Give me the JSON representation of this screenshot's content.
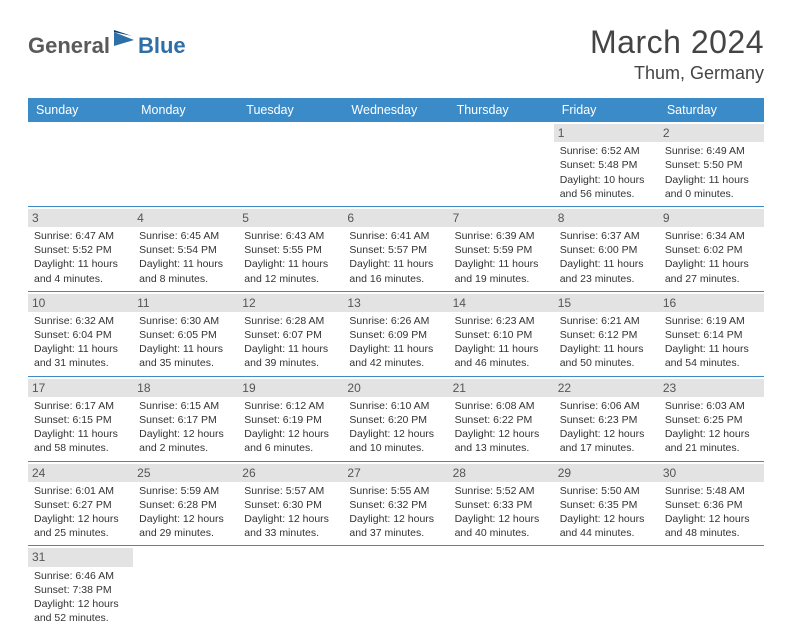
{
  "brand": {
    "part1": "General",
    "part2": "Blue"
  },
  "title": "March 2024",
  "location": "Thum, Germany",
  "colors": {
    "header_bg": "#3b8bc9",
    "header_fg": "#ffffff",
    "daynum_bg": "#e3e3e3",
    "rule": "#3b8bc9",
    "brand_gray": "#5a5a5a",
    "brand_blue": "#2f6fa8"
  },
  "day_headers": [
    "Sunday",
    "Monday",
    "Tuesday",
    "Wednesday",
    "Thursday",
    "Friday",
    "Saturday"
  ],
  "weeks": [
    [
      null,
      null,
      null,
      null,
      null,
      {
        "n": "1",
        "sr": "Sunrise: 6:52 AM",
        "ss": "Sunset: 5:48 PM",
        "d1": "Daylight: 10 hours",
        "d2": "and 56 minutes."
      },
      {
        "n": "2",
        "sr": "Sunrise: 6:49 AM",
        "ss": "Sunset: 5:50 PM",
        "d1": "Daylight: 11 hours",
        "d2": "and 0 minutes."
      }
    ],
    [
      {
        "n": "3",
        "sr": "Sunrise: 6:47 AM",
        "ss": "Sunset: 5:52 PM",
        "d1": "Daylight: 11 hours",
        "d2": "and 4 minutes."
      },
      {
        "n": "4",
        "sr": "Sunrise: 6:45 AM",
        "ss": "Sunset: 5:54 PM",
        "d1": "Daylight: 11 hours",
        "d2": "and 8 minutes."
      },
      {
        "n": "5",
        "sr": "Sunrise: 6:43 AM",
        "ss": "Sunset: 5:55 PM",
        "d1": "Daylight: 11 hours",
        "d2": "and 12 minutes."
      },
      {
        "n": "6",
        "sr": "Sunrise: 6:41 AM",
        "ss": "Sunset: 5:57 PM",
        "d1": "Daylight: 11 hours",
        "d2": "and 16 minutes."
      },
      {
        "n": "7",
        "sr": "Sunrise: 6:39 AM",
        "ss": "Sunset: 5:59 PM",
        "d1": "Daylight: 11 hours",
        "d2": "and 19 minutes."
      },
      {
        "n": "8",
        "sr": "Sunrise: 6:37 AM",
        "ss": "Sunset: 6:00 PM",
        "d1": "Daylight: 11 hours",
        "d2": "and 23 minutes."
      },
      {
        "n": "9",
        "sr": "Sunrise: 6:34 AM",
        "ss": "Sunset: 6:02 PM",
        "d1": "Daylight: 11 hours",
        "d2": "and 27 minutes."
      }
    ],
    [
      {
        "n": "10",
        "sr": "Sunrise: 6:32 AM",
        "ss": "Sunset: 6:04 PM",
        "d1": "Daylight: 11 hours",
        "d2": "and 31 minutes."
      },
      {
        "n": "11",
        "sr": "Sunrise: 6:30 AM",
        "ss": "Sunset: 6:05 PM",
        "d1": "Daylight: 11 hours",
        "d2": "and 35 minutes."
      },
      {
        "n": "12",
        "sr": "Sunrise: 6:28 AM",
        "ss": "Sunset: 6:07 PM",
        "d1": "Daylight: 11 hours",
        "d2": "and 39 minutes."
      },
      {
        "n": "13",
        "sr": "Sunrise: 6:26 AM",
        "ss": "Sunset: 6:09 PM",
        "d1": "Daylight: 11 hours",
        "d2": "and 42 minutes."
      },
      {
        "n": "14",
        "sr": "Sunrise: 6:23 AM",
        "ss": "Sunset: 6:10 PM",
        "d1": "Daylight: 11 hours",
        "d2": "and 46 minutes."
      },
      {
        "n": "15",
        "sr": "Sunrise: 6:21 AM",
        "ss": "Sunset: 6:12 PM",
        "d1": "Daylight: 11 hours",
        "d2": "and 50 minutes."
      },
      {
        "n": "16",
        "sr": "Sunrise: 6:19 AM",
        "ss": "Sunset: 6:14 PM",
        "d1": "Daylight: 11 hours",
        "d2": "and 54 minutes."
      }
    ],
    [
      {
        "n": "17",
        "sr": "Sunrise: 6:17 AM",
        "ss": "Sunset: 6:15 PM",
        "d1": "Daylight: 11 hours",
        "d2": "and 58 minutes."
      },
      {
        "n": "18",
        "sr": "Sunrise: 6:15 AM",
        "ss": "Sunset: 6:17 PM",
        "d1": "Daylight: 12 hours",
        "d2": "and 2 minutes."
      },
      {
        "n": "19",
        "sr": "Sunrise: 6:12 AM",
        "ss": "Sunset: 6:19 PM",
        "d1": "Daylight: 12 hours",
        "d2": "and 6 minutes."
      },
      {
        "n": "20",
        "sr": "Sunrise: 6:10 AM",
        "ss": "Sunset: 6:20 PM",
        "d1": "Daylight: 12 hours",
        "d2": "and 10 minutes."
      },
      {
        "n": "21",
        "sr": "Sunrise: 6:08 AM",
        "ss": "Sunset: 6:22 PM",
        "d1": "Daylight: 12 hours",
        "d2": "and 13 minutes."
      },
      {
        "n": "22",
        "sr": "Sunrise: 6:06 AM",
        "ss": "Sunset: 6:23 PM",
        "d1": "Daylight: 12 hours",
        "d2": "and 17 minutes."
      },
      {
        "n": "23",
        "sr": "Sunrise: 6:03 AM",
        "ss": "Sunset: 6:25 PM",
        "d1": "Daylight: 12 hours",
        "d2": "and 21 minutes."
      }
    ],
    [
      {
        "n": "24",
        "sr": "Sunrise: 6:01 AM",
        "ss": "Sunset: 6:27 PM",
        "d1": "Daylight: 12 hours",
        "d2": "and 25 minutes."
      },
      {
        "n": "25",
        "sr": "Sunrise: 5:59 AM",
        "ss": "Sunset: 6:28 PM",
        "d1": "Daylight: 12 hours",
        "d2": "and 29 minutes."
      },
      {
        "n": "26",
        "sr": "Sunrise: 5:57 AM",
        "ss": "Sunset: 6:30 PM",
        "d1": "Daylight: 12 hours",
        "d2": "and 33 minutes."
      },
      {
        "n": "27",
        "sr": "Sunrise: 5:55 AM",
        "ss": "Sunset: 6:32 PM",
        "d1": "Daylight: 12 hours",
        "d2": "and 37 minutes."
      },
      {
        "n": "28",
        "sr": "Sunrise: 5:52 AM",
        "ss": "Sunset: 6:33 PM",
        "d1": "Daylight: 12 hours",
        "d2": "and 40 minutes."
      },
      {
        "n": "29",
        "sr": "Sunrise: 5:50 AM",
        "ss": "Sunset: 6:35 PM",
        "d1": "Daylight: 12 hours",
        "d2": "and 44 minutes."
      },
      {
        "n": "30",
        "sr": "Sunrise: 5:48 AM",
        "ss": "Sunset: 6:36 PM",
        "d1": "Daylight: 12 hours",
        "d2": "and 48 minutes."
      }
    ],
    [
      {
        "n": "31",
        "sr": "Sunrise: 6:46 AM",
        "ss": "Sunset: 7:38 PM",
        "d1": "Daylight: 12 hours",
        "d2": "and 52 minutes."
      },
      null,
      null,
      null,
      null,
      null,
      null
    ]
  ]
}
